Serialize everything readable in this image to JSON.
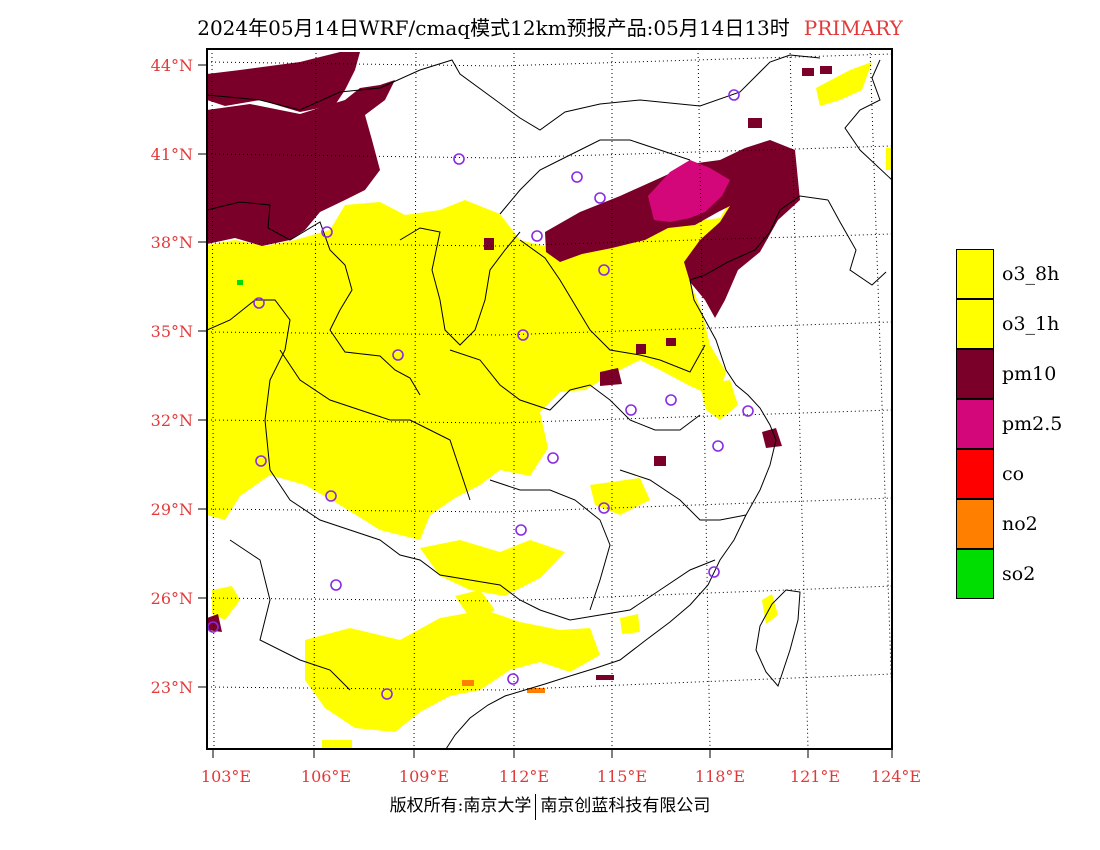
{
  "title": {
    "text": "2024年05月14日WRF/cmaq模式12km预报产品:05月14日13时",
    "tag": "PRIMARY"
  },
  "colors": {
    "label_red": "#e23a3a",
    "o3_8h": "#ffff00",
    "o3_1h": "#ffff00",
    "pm10": "#7a0029",
    "pm2_5": "#d4077a",
    "co": "#ff0000",
    "no2": "#ff7f00",
    "so2": "#00dd00",
    "station_marker": "#8a2be2"
  },
  "map": {
    "lat_labels": [
      "44°N",
      "41°N",
      "38°N",
      "35°N",
      "32°N",
      "29°N",
      "26°N",
      "23°N"
    ],
    "lon_labels": [
      "103°E",
      "106°E",
      "109°E",
      "112°E",
      "115°E",
      "118°E",
      "121°E",
      "124°E"
    ]
  },
  "legend": {
    "items": [
      {
        "label": "o3_8h",
        "color": "#ffff00"
      },
      {
        "label": "o3_1h",
        "color": "#ffff00"
      },
      {
        "label": "pm10",
        "color": "#7a0029"
      },
      {
        "label": "pm2.5",
        "color": "#d4077a"
      },
      {
        "label": "co",
        "color": "#ff0000"
      },
      {
        "label": "no2",
        "color": "#ff7f00"
      },
      {
        "label": "so2",
        "color": "#00dd00"
      }
    ]
  },
  "copyright": {
    "left": "版权所有:南京大学",
    "right": "南京创蓝科技有限公司"
  }
}
